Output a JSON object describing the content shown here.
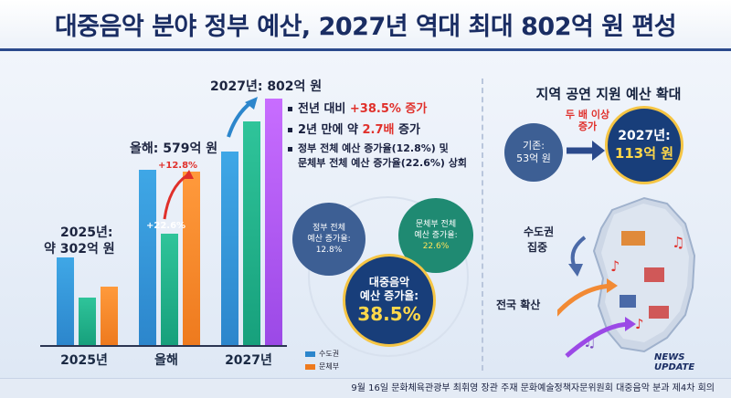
{
  "title": "대중음악 분야 정부 예산, 2027년 역대 최대 802억 원 편성",
  "chart_data": {
    "type": "bar",
    "categories": [
      "2025년",
      "올해",
      "2027년"
    ],
    "series": [
      {
        "name": "",
        "values": [
          302,
          579,
          802
        ],
        "color": "#2c86cc"
      },
      {
        "name": "수도권",
        "values": [
          null,
          null,
          null
        ],
        "color": "#17a07c"
      },
      {
        "name": "문체부",
        "values": [
          null,
          null,
          null
        ],
        "color": "#ee7a1e"
      }
    ],
    "value_labels": [
      "2025년:\n약 302억 원",
      "올해: 579억 원",
      "2027년: 802억 원"
    ],
    "annotations": [
      "+12.8%",
      "+22.6%"
    ],
    "legend": [
      "수도권",
      "문체부"
    ],
    "legend_position": "bottom-right"
  },
  "labels": {
    "y2025_line1": "2025년:",
    "y2025_line2": "약 302억 원",
    "this_year": "올해: 579억 원",
    "y2027": "2027년: 802억 원",
    "pct128": "+12.8%",
    "pct226": "+22.6%",
    "x1": "2025년",
    "x2": "올해",
    "x3": "2027년",
    "legend1": "수도권",
    "legend2": "문체부"
  },
  "bullets": {
    "b1_prefix": "전년 대비 ",
    "b1_red": "+38.5% 증가",
    "b2_prefix": "2년 만에 약 ",
    "b2_red": "2.7배",
    "b2_suffix": " 증가",
    "b3_line1": "정부 전체 예산 증가율(12.8%) 및",
    "b3_line2": "문체부 전체 예산 증가율(22.6%) 상회"
  },
  "circles": {
    "gov_l1": "정부 전체",
    "gov_l2": "예산 증가율:",
    "gov_l3": "12.8%",
    "mcst_l1": "문체부 전체",
    "mcst_l2": "예산 증가율:",
    "mcst_l3": "22.6%",
    "pop_l1": "대중음악",
    "pop_l2": "예산 증가율:",
    "pop_l3": "38.5%"
  },
  "right": {
    "title": "지역 공연 지원 예산 확대",
    "old_l1": "기존:",
    "old_l2": "53억 원",
    "tag_l1": "두 배 이상",
    "tag_l2": "증가",
    "new_l1": "2027년:",
    "new_l2": "113억 원",
    "capital_l1": "수도권",
    "capital_l2": "집중",
    "nation": "전국 확산",
    "news_l1": "NEWS",
    "news_l2": "UPDATE"
  },
  "footer": "9월 16일 문화체육관광부 최휘영 장관 주재 문화예술정책자문위원회 대중음악 분과 제4차 회의"
}
